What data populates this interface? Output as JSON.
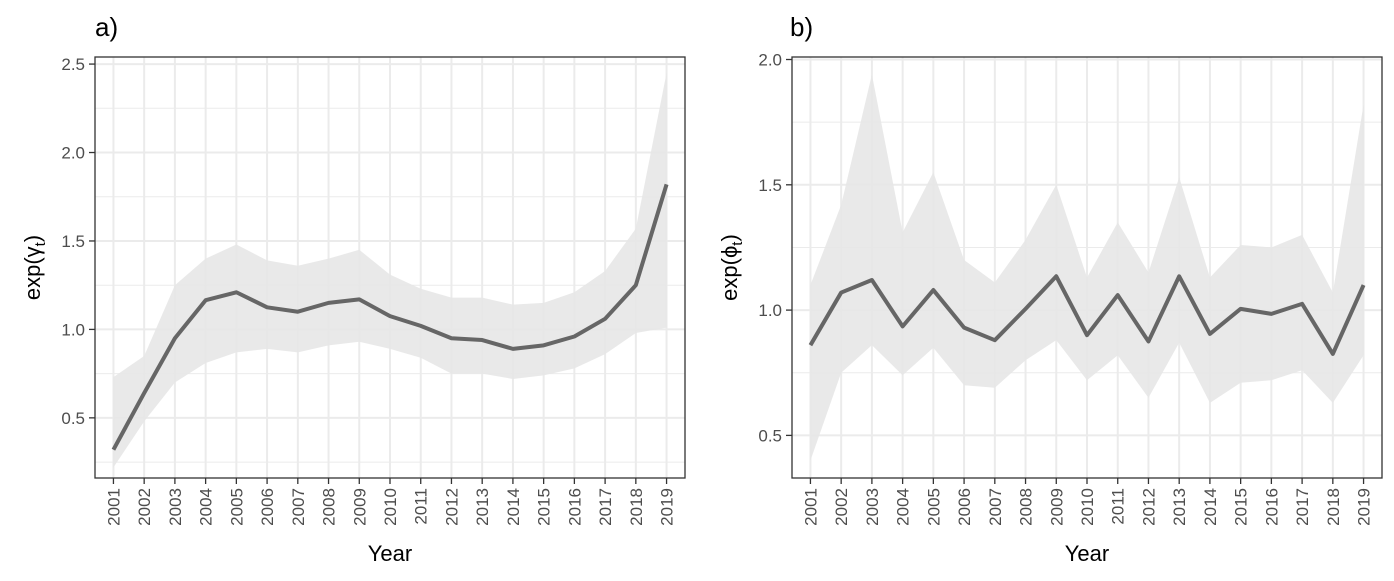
{
  "chart_data": [
    {
      "type": "line",
      "panel_label": "a)",
      "xlabel": "Year",
      "ylabel": "exp(γt)",
      "ylabel_main": "exp(γ",
      "ylabel_sub": "t",
      "ylabel_close": ")",
      "x": [
        "2001",
        "2002",
        "2003",
        "2004",
        "2005",
        "2006",
        "2007",
        "2008",
        "2009",
        "2010",
        "2011",
        "2012",
        "2013",
        "2014",
        "2015",
        "2016",
        "2017",
        "2018",
        "2019"
      ],
      "y": [
        0.32,
        0.64,
        0.95,
        1.165,
        1.21,
        1.125,
        1.1,
        1.15,
        1.17,
        1.075,
        1.02,
        0.95,
        0.94,
        0.89,
        0.91,
        0.96,
        1.06,
        1.25,
        1.82
      ],
      "lower": [
        0.22,
        0.48,
        0.7,
        0.81,
        0.87,
        0.89,
        0.87,
        0.91,
        0.93,
        0.89,
        0.84,
        0.75,
        0.75,
        0.72,
        0.74,
        0.78,
        0.86,
        0.98,
        1.01
      ],
      "upper": [
        0.73,
        0.85,
        1.25,
        1.4,
        1.48,
        1.39,
        1.36,
        1.4,
        1.45,
        1.31,
        1.23,
        1.18,
        1.18,
        1.14,
        1.15,
        1.21,
        1.33,
        1.57,
        2.45
      ],
      "ylim": [
        0.16,
        2.54
      ],
      "yticks": [
        0.5,
        1.0,
        1.5,
        2.0,
        2.5
      ],
      "ytick_labels": [
        "0.5",
        "1.0",
        "1.5",
        "2.0",
        "2.5"
      ],
      "grid": true,
      "colors": {
        "line": "#666666",
        "ribbon": "#e6e6e6",
        "grid": "#ebebeb",
        "border": "#333333"
      }
    },
    {
      "type": "line",
      "panel_label": "b)",
      "xlabel": "Year",
      "ylabel": "exp(ϕt)",
      "ylabel_main": "exp(ϕ",
      "ylabel_sub": "t",
      "ylabel_close": ")",
      "x": [
        "2001",
        "2002",
        "2003",
        "2004",
        "2005",
        "2006",
        "2007",
        "2008",
        "2009",
        "2010",
        "2011",
        "2012",
        "2013",
        "2014",
        "2015",
        "2016",
        "2017",
        "2018",
        "2019"
      ],
      "y": [
        0.86,
        1.07,
        1.12,
        0.935,
        1.08,
        0.93,
        0.88,
        1.005,
        1.135,
        0.9,
        1.06,
        0.875,
        1.135,
        0.905,
        1.005,
        0.985,
        1.025,
        0.825,
        1.1
      ],
      "lower": [
        0.4,
        0.75,
        0.86,
        0.74,
        0.85,
        0.7,
        0.69,
        0.8,
        0.88,
        0.72,
        0.82,
        0.65,
        0.87,
        0.63,
        0.71,
        0.72,
        0.76,
        0.63,
        0.82
      ],
      "upper": [
        1.1,
        1.42,
        1.94,
        1.31,
        1.55,
        1.2,
        1.11,
        1.28,
        1.5,
        1.13,
        1.35,
        1.15,
        1.53,
        1.13,
        1.26,
        1.25,
        1.3,
        1.07,
        1.82
      ],
      "ylim": [
        0.33,
        2.01
      ],
      "yticks": [
        0.5,
        1.0,
        1.5,
        2.0
      ],
      "ytick_labels": [
        "0.5",
        "1.0",
        "1.5",
        "2.0"
      ],
      "grid": true,
      "colors": {
        "line": "#666666",
        "ribbon": "#e6e6e6",
        "grid": "#ebebeb",
        "border": "#333333"
      }
    }
  ]
}
